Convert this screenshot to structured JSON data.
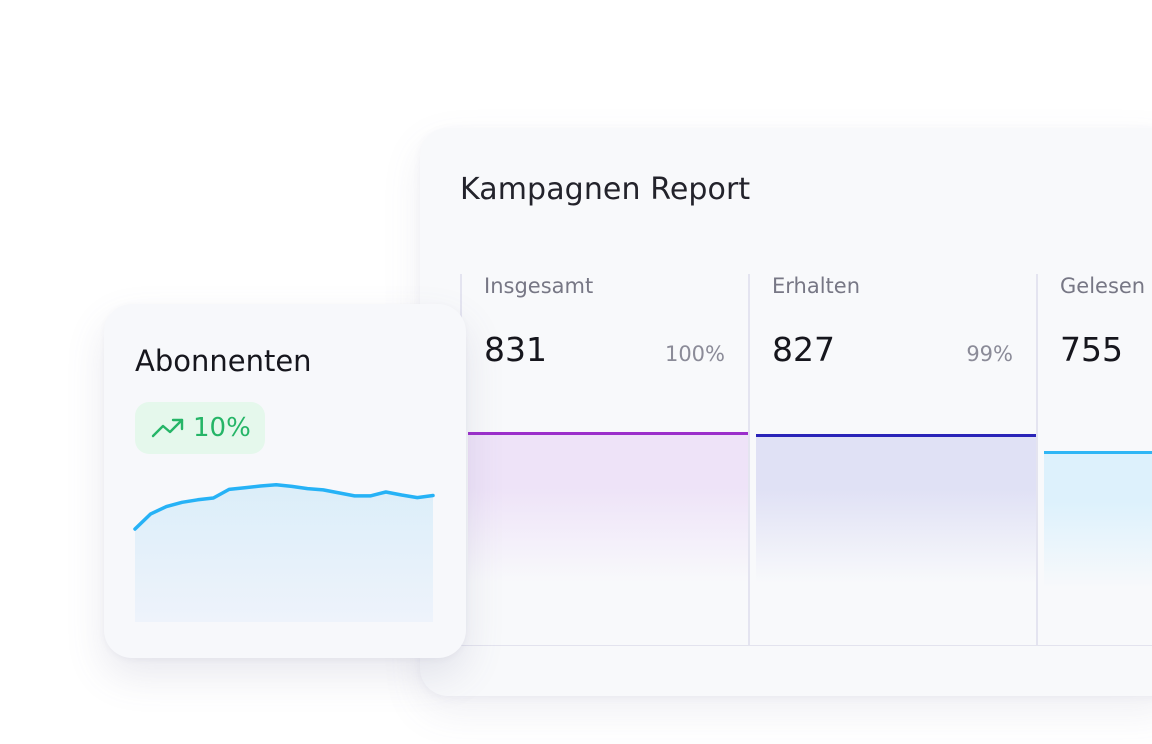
{
  "report": {
    "title": "Kampagnen Report",
    "columns": [
      {
        "label": "Insgesamt",
        "value": "831",
        "percent": "100%",
        "fill_fraction": 1.0,
        "color": "#9b2fcb",
        "fill_color": "#eee3f8"
      },
      {
        "label": "Erhalten",
        "value": "827",
        "percent": "99%",
        "fill_fraction": 0.99,
        "color": "#2a24b8",
        "fill_color": "#e0e1f5"
      },
      {
        "label": "Gelesen",
        "value": "755",
        "percent": "",
        "fill_fraction": 0.91,
        "color": "#2fb6f5",
        "fill_color": "#ddf1fc"
      }
    ]
  },
  "subscribers": {
    "title": "Abonnenten",
    "growth_icon": "trending-up-icon",
    "growth": "10%",
    "growth_color": "#25b567",
    "line_color": "#26b2f6",
    "chart_data": {
      "type": "area",
      "values": [
        0.0,
        0.35,
        0.52,
        0.62,
        0.68,
        0.72,
        0.92,
        0.96,
        1.0,
        1.03,
        0.99,
        0.94,
        0.91,
        0.84,
        0.77,
        0.77,
        0.86,
        0.79,
        0.73,
        0.78
      ]
    }
  }
}
